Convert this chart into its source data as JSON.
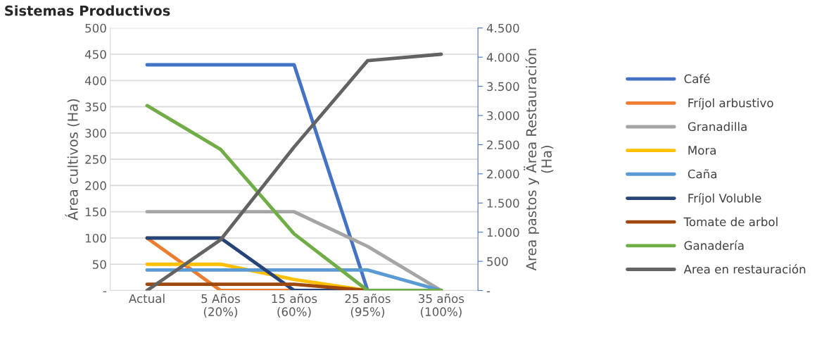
{
  "chart_data": {
    "type": "line",
    "title": "Sistemas Productivos",
    "categories": [
      "Actual",
      "5 Años\n(20%)",
      "15 años\n(60%)",
      "25 años\n(95%)",
      "35 años\n(100%)"
    ],
    "ylabel": "Área cultivos (Ha)",
    "y2label": "Area pastos y Ärea Restauración\n(Ha)",
    "ylim": [
      0,
      500
    ],
    "yticks": [
      {
        "value": 0,
        "label": "-"
      },
      50,
      100,
      150,
      200,
      250,
      300,
      350,
      400,
      450,
      500
    ],
    "y2lim": [
      0,
      4500
    ],
    "y2ticks": [
      {
        "value": 0,
        "label": "-"
      },
      {
        "value": 500,
        "label": "500"
      },
      {
        "value": 1000,
        "label": "1.000"
      },
      {
        "value": 1500,
        "label": "1.500"
      },
      {
        "value": 2000,
        "label": "2.000"
      },
      {
        "value": 2500,
        "label": "2.500"
      },
      {
        "value": 3000,
        "label": "3.000"
      },
      {
        "value": 3500,
        "label": "3.500"
      },
      {
        "value": 4000,
        "label": "4.000"
      },
      {
        "value": 4500,
        "label": "4.500"
      }
    ],
    "grid": "y",
    "legend": "right",
    "marker": "none",
    "line_style": "solid",
    "series": [
      {
        "name": "Café",
        "color": "#4472c4",
        "values": [
          430,
          430,
          430,
          0,
          0
        ]
      },
      {
        "name": " Fríjol arbustivo",
        "color": "#ed7d31",
        "values": [
          100,
          0,
          0,
          0,
          0
        ]
      },
      {
        "name": " Granadilla",
        "color": "#a5a5a5",
        "values": [
          150,
          150,
          150,
          84,
          0
        ]
      },
      {
        "name": " Mora",
        "color": "#ffc000",
        "values": [
          50,
          50,
          21,
          0,
          0
        ]
      },
      {
        "name": " Caña",
        "color": "#5b9bd5",
        "values": [
          39,
          39,
          39,
          39,
          0
        ]
      },
      {
        "name": " Fríjol Voluble",
        "color": "#264478",
        "values": [
          100,
          100,
          0,
          0,
          0
        ]
      },
      {
        "name": "Tomate de arbol",
        "color": "#9e480e",
        "values": [
          12,
          12,
          12,
          0,
          0
        ]
      },
      {
        "name": "Ganadería",
        "color": "#70ad47",
        "axis": "y2",
        "values": [
          3170,
          2420,
          970,
          0,
          0
        ]
      },
      {
        "name": "Area en restauración",
        "color": "#636363",
        "axis": "y2",
        "values": [
          0,
          870,
          2460,
          3940,
          4050
        ]
      }
    ]
  }
}
